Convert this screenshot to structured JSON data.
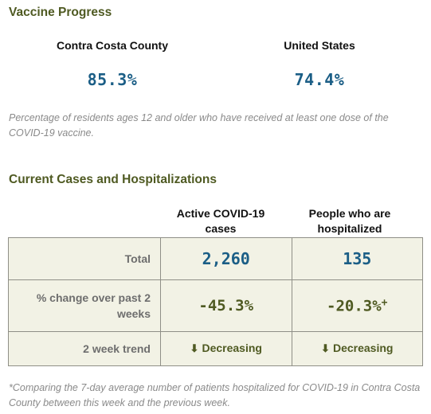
{
  "vaccine": {
    "title": "Vaccine Progress",
    "county": {
      "name": "Contra Costa County",
      "value": "85.3%"
    },
    "us": {
      "name": "United States",
      "value": "74.4%"
    },
    "note": "Percentage of residents ages 12 and older who have received at least one dose of the COVID-19 vaccine."
  },
  "cases": {
    "title": "Current Cases and Hospitalizations",
    "columns": [
      "Active COVID-19 cases",
      "People who are hospitalized"
    ],
    "rows": [
      {
        "label": "Total",
        "active": "2,260",
        "hospitalized": "135"
      },
      {
        "label": "% change over past 2 weeks",
        "active": "-45.3%",
        "hospitalized": "-20.3%",
        "hospitalized_mark": "+"
      },
      {
        "label": "2 week trend",
        "active": "Decreasing",
        "hospitalized": "Decreasing",
        "icon": "arrow-down-icon"
      }
    ],
    "footnote": "*Comparing the 7-day average number of patients hospitalized for COVID-19 in Contra Costa County between this week and the previous week."
  }
}
